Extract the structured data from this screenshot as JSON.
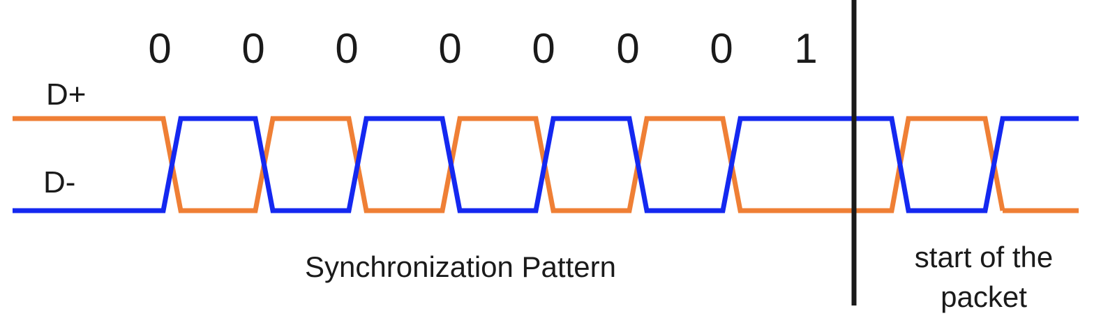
{
  "diagram": {
    "bits": [
      "0",
      "0",
      "0",
      "0",
      "0",
      "0",
      "0",
      "1"
    ],
    "signals": {
      "dplus": {
        "label": "D+",
        "color": "#ef7f35"
      },
      "dminus": {
        "label": "D-",
        "color": "#1428f0"
      }
    },
    "sections": {
      "sync": {
        "label": "Synchronization Pattern"
      },
      "packet": {
        "label_lines": [
          "start of the",
          "packet"
        ]
      }
    },
    "divider_color": "#1a1a1a"
  }
}
